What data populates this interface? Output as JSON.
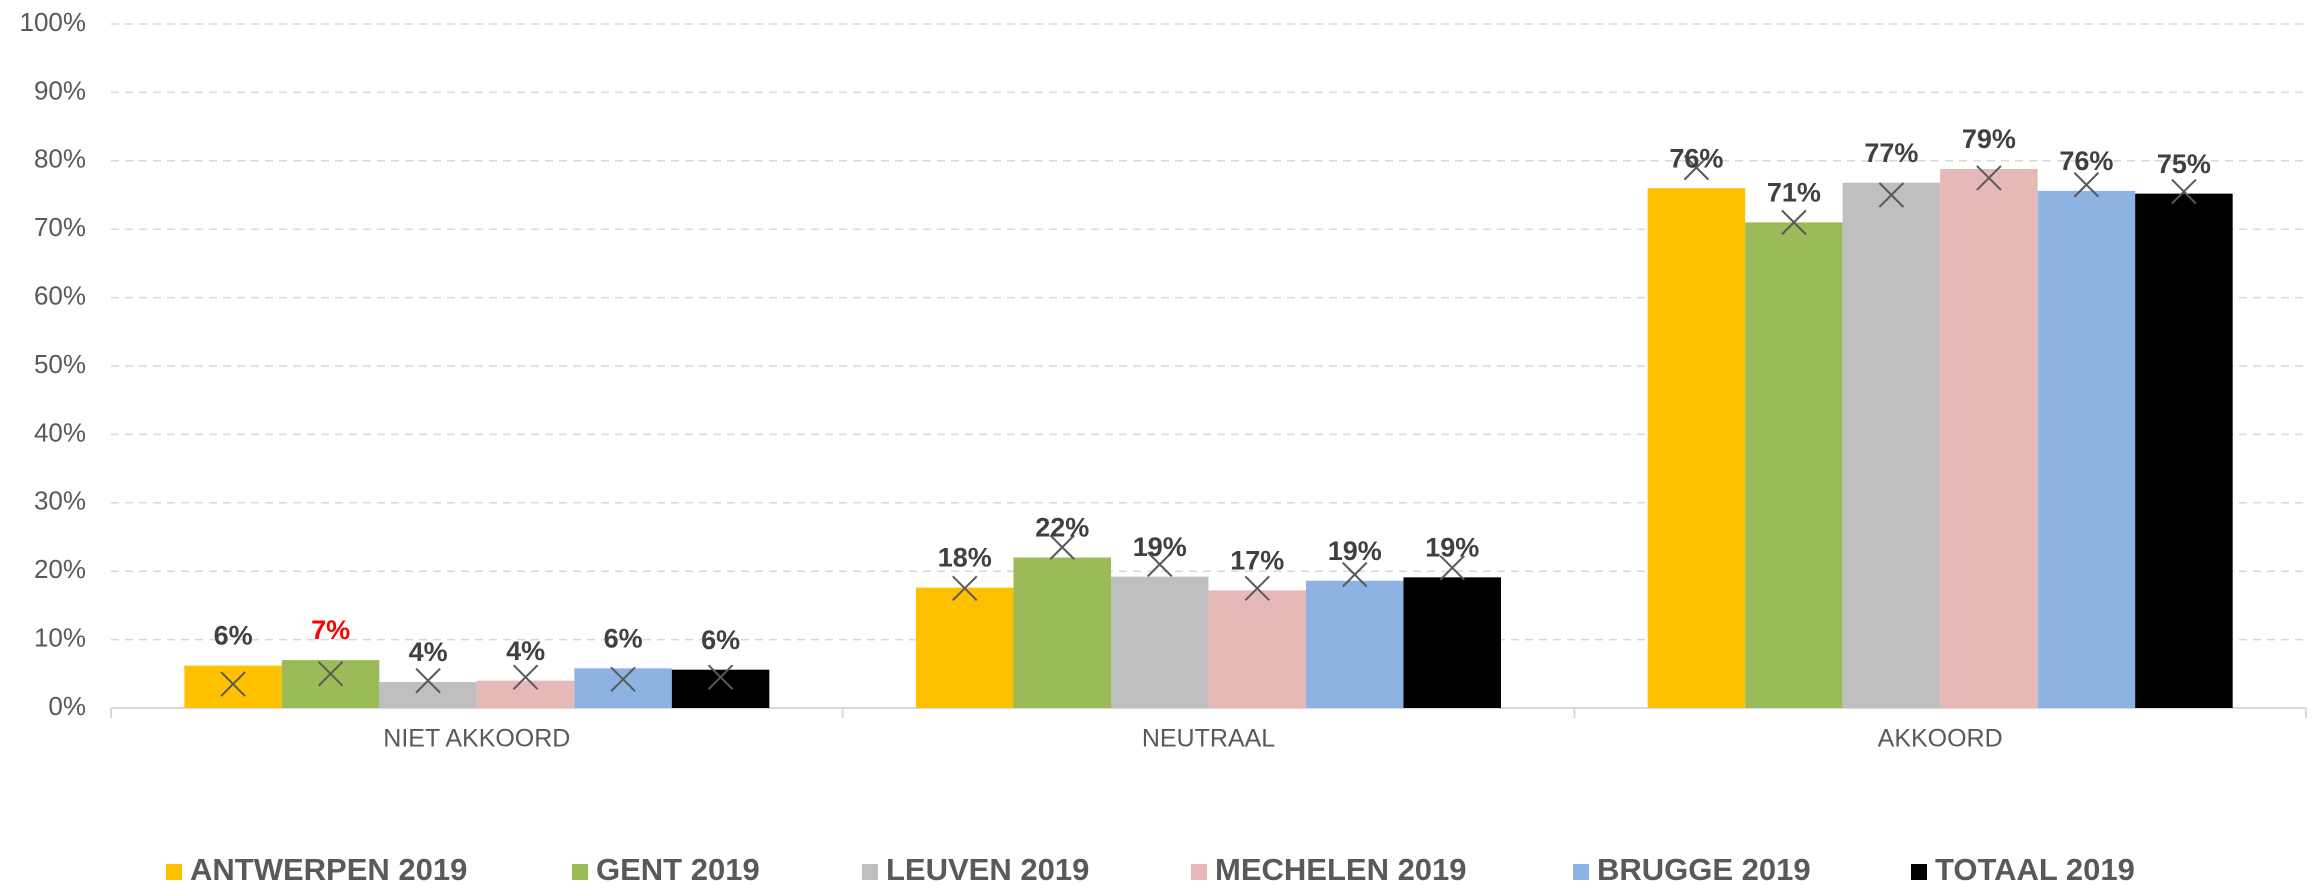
{
  "chart_data": {
    "type": "bar",
    "categories": [
      "NIET AKKOORD",
      "NEUTRAAL",
      "AKKOORD"
    ],
    "ylim": [
      0,
      100
    ],
    "yticks": [
      {
        "value": 0,
        "label": "0%"
      },
      {
        "value": 10,
        "label": "10%"
      },
      {
        "value": 20,
        "label": "20%"
      },
      {
        "value": 30,
        "label": "30%"
      },
      {
        "value": 40,
        "label": "40%"
      },
      {
        "value": 50,
        "label": "50%"
      },
      {
        "value": 60,
        "label": "60%"
      },
      {
        "value": 70,
        "label": "70%"
      },
      {
        "value": 80,
        "label": "80%"
      },
      {
        "value": 90,
        "label": "90%"
      },
      {
        "value": 100,
        "label": "100%"
      }
    ],
    "grid": true,
    "legend": "bottom",
    "marker_color": "#595959",
    "series": [
      {
        "name": "ANTWERPEN 2019",
        "color": "#ffc000",
        "values": [
          6.2,
          17.6,
          76
        ],
        "value_labels": [
          "6%",
          "18%",
          "76%"
        ],
        "label_colors": [
          "#404040",
          "#404040",
          "#404040"
        ],
        "markers": [
          3.5,
          17.5,
          79
        ]
      },
      {
        "name": "GENT 2019",
        "color": "#9bbb59",
        "values": [
          7,
          22,
          71
        ],
        "value_labels": [
          "7%",
          "22%",
          "71%"
        ],
        "label_colors": [
          "#ff0000",
          "#404040",
          "#404040"
        ],
        "markers": [
          5,
          23.5,
          71
        ]
      },
      {
        "name": "LEUVEN 2019",
        "color": "#bfbfbf",
        "values": [
          3.8,
          19.2,
          76.8
        ],
        "value_labels": [
          "4%",
          "19%",
          "77%"
        ],
        "label_colors": [
          "#404040",
          "#404040",
          "#404040"
        ],
        "markers": [
          4,
          21,
          75
        ]
      },
      {
        "name": "MECHELEN 2019",
        "color": "#e6b9b8",
        "values": [
          4,
          17.2,
          78.8
        ],
        "value_labels": [
          "4%",
          "17%",
          "79%"
        ],
        "label_colors": [
          "#404040",
          "#404040",
          "#404040"
        ],
        "markers": [
          4.5,
          17.5,
          77.5
        ]
      },
      {
        "name": "BRUGGE 2019",
        "color": "#8db3e2",
        "values": [
          5.8,
          18.6,
          75.6
        ],
        "value_labels": [
          "6%",
          "19%",
          "76%"
        ],
        "label_colors": [
          "#404040",
          "#404040",
          "#404040"
        ],
        "markers": [
          4.2,
          19.5,
          76.5
        ]
      },
      {
        "name": "TOTAAL 2019",
        "color": "#000000",
        "values": [
          5.6,
          19.1,
          75.2
        ],
        "value_labels": [
          "6%",
          "19%",
          "75%"
        ],
        "label_colors": [
          "#404040",
          "#404040",
          "#404040"
        ],
        "markers": [
          4.5,
          20.5,
          75.5
        ]
      }
    ]
  }
}
